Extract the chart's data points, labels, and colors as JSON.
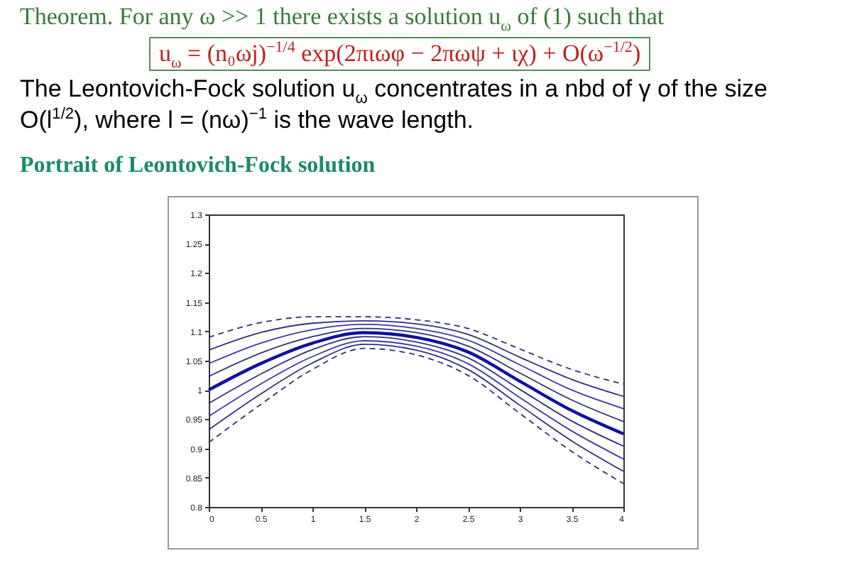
{
  "chart_data": {
    "type": "line",
    "title": "Theorem. For any ω >> 1 there exists a solution u$_{ω}$ of (1) such that",
    "subtitle": "Portrait of Leontovich-Fock solution",
    "annotations": [
      "u$_{ω}$ = (n₀ωj)$^{−1/4}$ exp(2πιωφ − 2πωψ + ιχ) + O(ω$^{−1/2}$)",
      "The Leontovich-Fock solution u$_{ω}$ concentrates in a nbd of γ of the size O(l$^{1/2}$), where l = (nω)$^{−1}$ is the wave length."
    ],
    "x": [
      0,
      0.5,
      1,
      1.5,
      2,
      2.5,
      3,
      3.5,
      4
    ],
    "series": [
      {
        "color": "#30307a",
        "line_style": "dashed",
        "values": [
          1.09,
          1.115,
          1.125,
          1.125,
          1.12,
          1.105,
          1.07,
          1.035,
          1.01
        ]
      },
      {
        "color": "#30307a",
        "line_style": "solid",
        "values": [
          1.068,
          1.098,
          1.114,
          1.118,
          1.113,
          1.095,
          1.056,
          1.018,
          0.989
        ]
      },
      {
        "color": "#3a3aa8",
        "line_style": "solid",
        "values": [
          1.045,
          1.08,
          1.103,
          1.112,
          1.105,
          1.085,
          1.043,
          1.0,
          0.968
        ]
      },
      {
        "color": "#30307a",
        "line_style": "solid",
        "values": [
          1.023,
          1.063,
          1.091,
          1.105,
          1.098,
          1.075,
          1.029,
          0.983,
          0.946
        ]
      },
      {
        "color": "#1010a0",
        "line_style": "solid",
        "values": [
          1.0,
          1.045,
          1.08,
          1.098,
          1.09,
          1.065,
          1.015,
          0.965,
          0.925
        ]
      },
      {
        "color": "#30307a",
        "line_style": "solid",
        "values": [
          0.977,
          1.027,
          1.069,
          1.091,
          1.082,
          1.055,
          1.001,
          0.947,
          0.904
        ]
      },
      {
        "color": "#3a3aa8",
        "line_style": "solid",
        "values": [
          0.955,
          1.01,
          1.057,
          1.084,
          1.075,
          1.045,
          0.987,
          0.93,
          0.882
        ]
      },
      {
        "color": "#30307a",
        "line_style": "solid",
        "values": [
          0.932,
          0.993,
          1.046,
          1.078,
          1.068,
          1.035,
          0.974,
          0.913,
          0.861
        ]
      },
      {
        "color": "#30307a",
        "line_style": "dashed",
        "values": [
          0.91,
          0.975,
          1.035,
          1.071,
          1.06,
          1.025,
          0.96,
          0.895,
          0.84
        ]
      }
    ],
    "xlim": [
      0,
      4
    ],
    "xticks": [
      0,
      0.5,
      1,
      1.5,
      2,
      2.5,
      3,
      3.5,
      4
    ],
    "ylim": [
      0.8,
      1.3
    ],
    "yticks": [
      0.8,
      0.85,
      0.9,
      0.95,
      1,
      1.05,
      1.1,
      1.15,
      1.2,
      1.25,
      1.3
    ],
    "grid": false
  }
}
